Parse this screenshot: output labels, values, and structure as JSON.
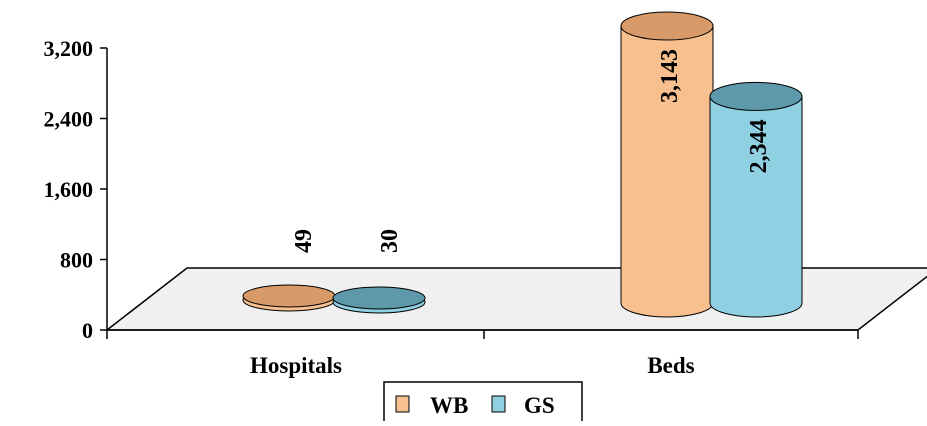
{
  "chart_data": {
    "type": "bar",
    "style": "3d-cylinder",
    "categories": [
      "Hospitals",
      "Beds"
    ],
    "series": [
      {
        "name": "WB",
        "values": [
          49,
          3143
        ],
        "labels": [
          "49",
          "3,143"
        ],
        "color": "#f8c08e",
        "top_color": "#d79a68"
      },
      {
        "name": "GS",
        "values": [
          30,
          2344
        ],
        "labels": [
          "30",
          "2,344"
        ],
        "color": "#8fd0e2",
        "top_color": "#5e99ab"
      }
    ],
    "y_ticks": [
      "0",
      "800",
      "1,600",
      "2,400",
      "3,200"
    ],
    "y_tick_values": [
      0,
      800,
      1600,
      2400,
      3200
    ],
    "ylim": [
      0,
      3200
    ],
    "grid": false,
    "legend": "bottom-center",
    "floor_color": "#f0f0f0",
    "line_color": "#000000"
  }
}
